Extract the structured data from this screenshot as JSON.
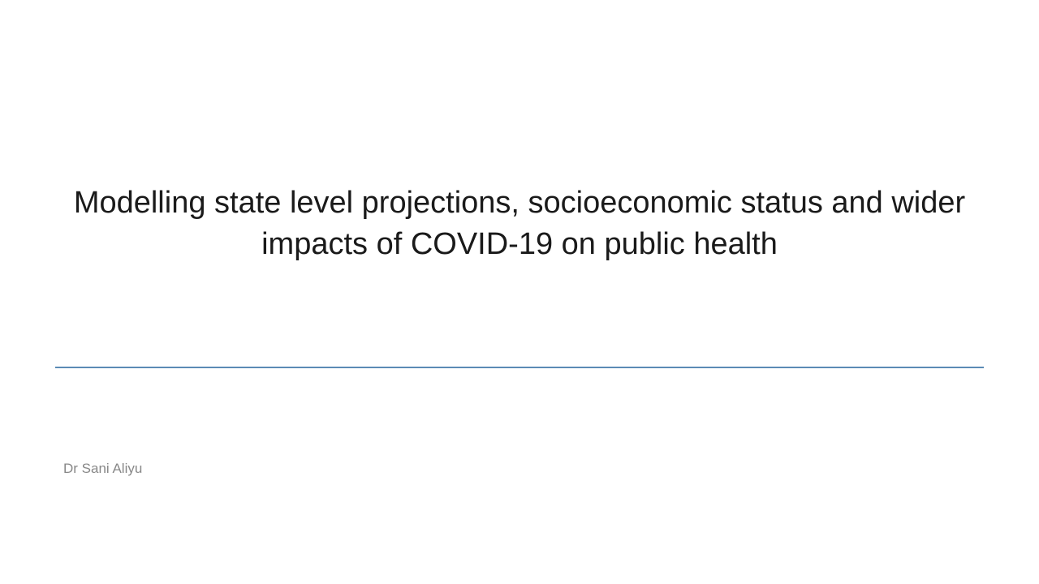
{
  "slide": {
    "title": "Modelling state level projections, socioeconomic status and wider impacts of COVID-19 on public health",
    "author": "Dr Sani Aliyu",
    "background_color": "#ffffff",
    "title_color": "#1a1a1a",
    "title_fontsize": 38,
    "author_color": "#888888",
    "author_fontsize": 17,
    "divider_color": "#5b8bb5"
  }
}
